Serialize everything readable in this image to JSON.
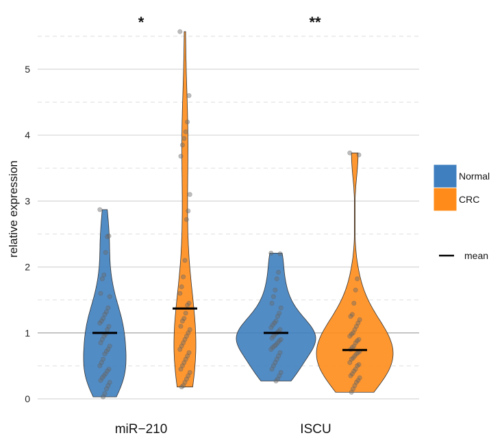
{
  "chart_data": {
    "type": "violin",
    "ylabel": "relative expression",
    "ylim": [
      0,
      5.5
    ],
    "yticks": [
      0,
      1,
      2,
      3,
      4,
      5
    ],
    "reference_line": 1,
    "categories": [
      "miR−210",
      "ISCU"
    ],
    "significance": [
      "*",
      "**"
    ],
    "series": [
      {
        "name": "Normal",
        "color": "#3F7FBF"
      },
      {
        "name": "CRC",
        "color": "#FF8C1A"
      }
    ],
    "legend": {
      "mean_label": "mean",
      "placement": "right"
    },
    "groups": [
      {
        "category": "miR−210",
        "series": "Normal",
        "min": 0.03,
        "max": 2.87,
        "mean": 1.0,
        "points": [
          2.87,
          2.47,
          2.46,
          2.22,
          1.88,
          1.82,
          1.6,
          1.55,
          1.38,
          1.32,
          1.28,
          1.22,
          1.18,
          1.15,
          1.1,
          1.05,
          0.98,
          0.95,
          0.9,
          0.85,
          0.8,
          0.75,
          0.72,
          0.68,
          0.6,
          0.55,
          0.5,
          0.45,
          0.42,
          0.38,
          0.35,
          0.32,
          0.28,
          0.25,
          0.2,
          0.15,
          0.08,
          0.03
        ]
      },
      {
        "category": "miR−210",
        "series": "CRC",
        "min": 0.18,
        "max": 5.57,
        "mean": 1.37,
        "points": [
          5.57,
          4.6,
          4.2,
          4.05,
          3.95,
          3.85,
          3.68,
          3.1,
          2.85,
          2.72,
          2.1,
          1.85,
          1.7,
          1.6,
          1.45,
          1.42,
          1.3,
          1.22,
          1.18,
          1.1,
          1.05,
          1.0,
          0.95,
          0.9,
          0.85,
          0.8,
          0.75,
          0.7,
          0.65,
          0.6,
          0.55,
          0.5,
          0.45,
          0.4,
          0.35,
          0.3,
          0.25,
          0.2,
          0.18
        ]
      },
      {
        "category": "ISCU",
        "series": "Normal",
        "min": 0.27,
        "max": 2.21,
        "mean": 1.0,
        "points": [
          2.21,
          2.2,
          1.92,
          1.82,
          1.65,
          1.55,
          1.45,
          1.38,
          1.3,
          1.25,
          1.18,
          1.15,
          1.12,
          1.08,
          1.05,
          1.02,
          1.0,
          0.98,
          0.95,
          0.92,
          0.9,
          0.88,
          0.85,
          0.82,
          0.8,
          0.78,
          0.75,
          0.7,
          0.65,
          0.6,
          0.55,
          0.5,
          0.45,
          0.4,
          0.35,
          0.3,
          0.27
        ]
      },
      {
        "category": "ISCU",
        "series": "CRC",
        "min": 0.1,
        "max": 3.73,
        "mean": 0.74,
        "points": [
          3.73,
          3.7,
          1.82,
          1.65,
          1.45,
          1.28,
          1.25,
          1.2,
          1.15,
          1.1,
          1.05,
          1.0,
          0.98,
          0.95,
          0.9,
          0.88,
          0.85,
          0.8,
          0.78,
          0.75,
          0.72,
          0.7,
          0.68,
          0.65,
          0.62,
          0.6,
          0.55,
          0.52,
          0.5,
          0.45,
          0.42,
          0.38,
          0.35,
          0.32,
          0.28,
          0.25,
          0.2,
          0.15,
          0.1
        ]
      }
    ]
  }
}
